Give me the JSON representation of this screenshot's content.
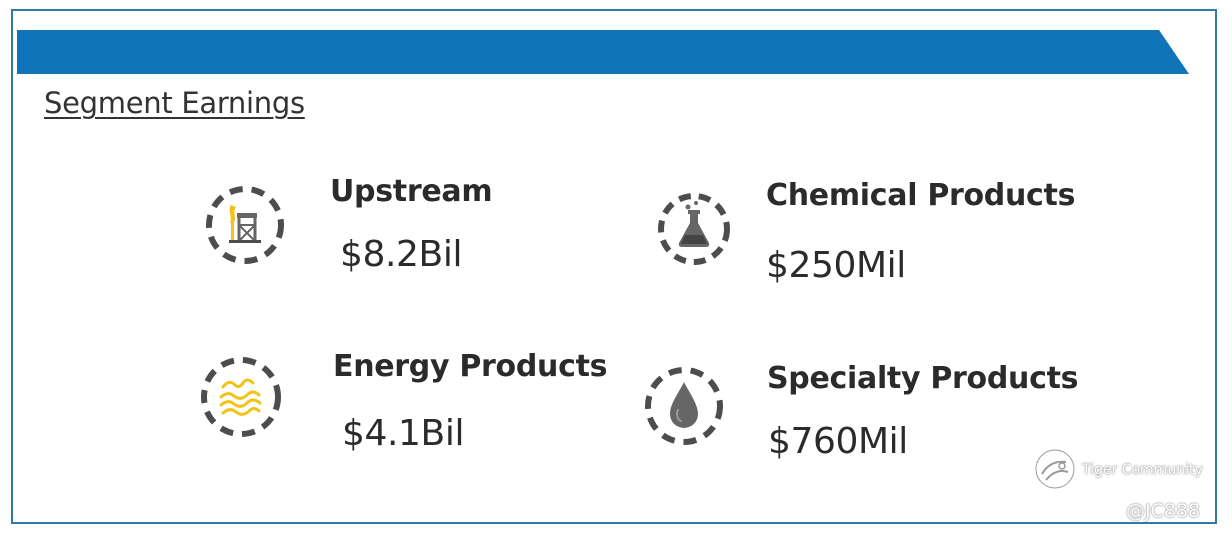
{
  "title": "Segment Earnings",
  "colors": {
    "banner": "#0f74b8",
    "frame": "#2f7aa8",
    "icon_ring": "#4d4d4d",
    "icon_gray": "#666666",
    "icon_yellow": "#f2c218",
    "text": "#2b2b2b"
  },
  "segments": [
    {
      "name": "Upstream",
      "value": "$8.2Bil",
      "icon": "oil-pump-icon"
    },
    {
      "name": "Chemical Products",
      "value": "$250Mil",
      "icon": "flask-icon"
    },
    {
      "name": "Energy Products",
      "value": "$4.1Bil",
      "icon": "waves-icon"
    },
    {
      "name": "Specialty Products",
      "value": "$760Mil",
      "icon": "oil-drop-icon"
    }
  ],
  "watermark": {
    "brand": "Tiger Community",
    "handle": "@JC888",
    "icon": "tiger-community-logo-icon"
  }
}
